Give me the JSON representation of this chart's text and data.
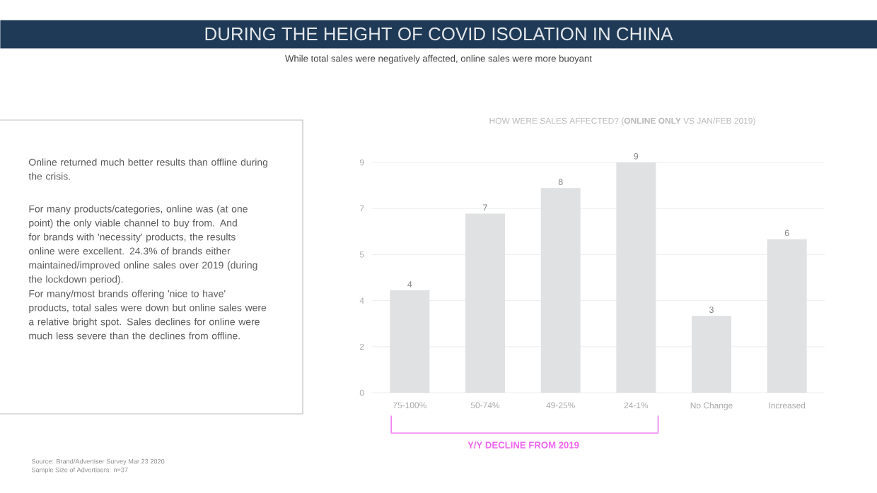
{
  "chart_data": {
    "type": "bar",
    "title": "DURING THE HEIGHT OF COVID ISOLATION IN CHINA",
    "subtitle": "While total sales were negatively affected, online sales were more buoyant",
    "xlabel": "HOW WERE SALES AFFECTED? (**ONLINE ONLY** VS JAN/FEB 2019)",
    "categories": [
      "75-100%",
      "50-74%",
      "49-25%",
      "24-1%",
      "No Change",
      "Increased"
    ],
    "values": [
      4,
      7,
      8,
      9,
      3,
      6
    ],
    "color": "#e0e1e3",
    "ylim": [
      0,
      9
    ],
    "yticks": [
      {
        "value": 0,
        "label": "0"
      },
      {
        "value": 1.8,
        "label": "2"
      },
      {
        "value": 3.6,
        "label": "4"
      },
      {
        "value": 5.4,
        "label": "5"
      },
      {
        "value": 7.2,
        "label": "7"
      },
      {
        "value": 9,
        "label": "9"
      }
    ],
    "grid": "y",
    "data_labels": true,
    "annotations": [
      "Online returned much better results than offline during the crisis.",
      "For many products/categories, online was (at one point) the only viable channel to buy from. And for brands with 'necessity' products, the results online were excellent. 24.3% of brands either maintained/improved online sales over 2019 (during the lockdown period).",
      "For many/most brands offering 'nice to have' products, total sales were down but online sales were a relative bright spot. Sales declines for online were much less severe than the declines from offline.",
      "Y/Y DECLINE FROM 2019",
      "Source: Brand/Advertiser Survey Mar 23 2020",
      "Sample Size of Advertisers: n=37"
    ]
  }
}
